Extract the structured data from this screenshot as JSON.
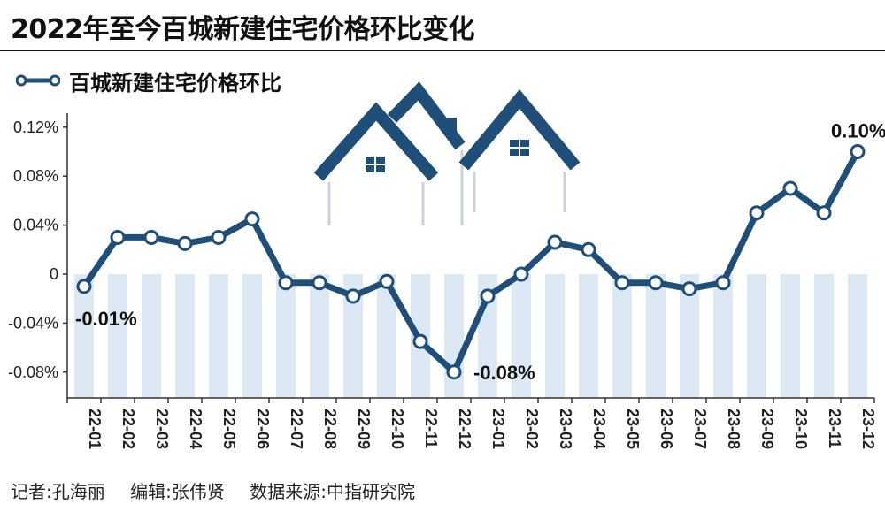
{
  "title": "2022年至今百城新建住宅价格环比变化",
  "footer": {
    "reporter": "记者:孔海丽",
    "editor": "编辑:张伟贤",
    "source": "数据来源:中指研究院"
  },
  "colors": {
    "line": "#1f4e79",
    "marker_fill": "#ffffff",
    "band": "#dce8f4",
    "house": "#1f4e79"
  },
  "chart_data": {
    "type": "line",
    "title": "2022年至今百城新建住宅价格环比变化",
    "categories": [
      "22-01",
      "22-02",
      "22-03",
      "22-04",
      "22-05",
      "22-06",
      "22-07",
      "22-08",
      "22-09",
      "22-10",
      "22-11",
      "22-12",
      "23-01",
      "23-02",
      "23-03",
      "23-04",
      "23-05",
      "23-06",
      "23-07",
      "23-08",
      "23-09",
      "23-10",
      "23-11",
      "23-12"
    ],
    "series": [
      {
        "name": "百城新建住宅价格环比",
        "values": [
          -0.01,
          0.03,
          0.03,
          0.025,
          0.03,
          0.045,
          -0.007,
          -0.007,
          -0.018,
          -0.006,
          -0.055,
          -0.08,
          -0.018,
          0.0,
          0.026,
          0.02,
          -0.007,
          -0.007,
          -0.012,
          -0.007,
          0.05,
          0.07,
          0.05,
          0.1
        ]
      }
    ],
    "yticks": [
      "0.12%",
      "0.08%",
      "0.04%",
      "0",
      "-0.04%",
      "-0.08%"
    ],
    "ytick_values": [
      0.12,
      0.08,
      0.04,
      0,
      -0.04,
      -0.08
    ],
    "ylim": [
      -0.1,
      0.12
    ],
    "annotations": [
      {
        "index": 0,
        "text": "-0.01%"
      },
      {
        "index": 11,
        "text": "-0.08%"
      },
      {
        "index": 23,
        "text": "0.10%"
      }
    ],
    "xlabel": "",
    "ylabel": "",
    "legend": "top-left",
    "grid": false
  }
}
